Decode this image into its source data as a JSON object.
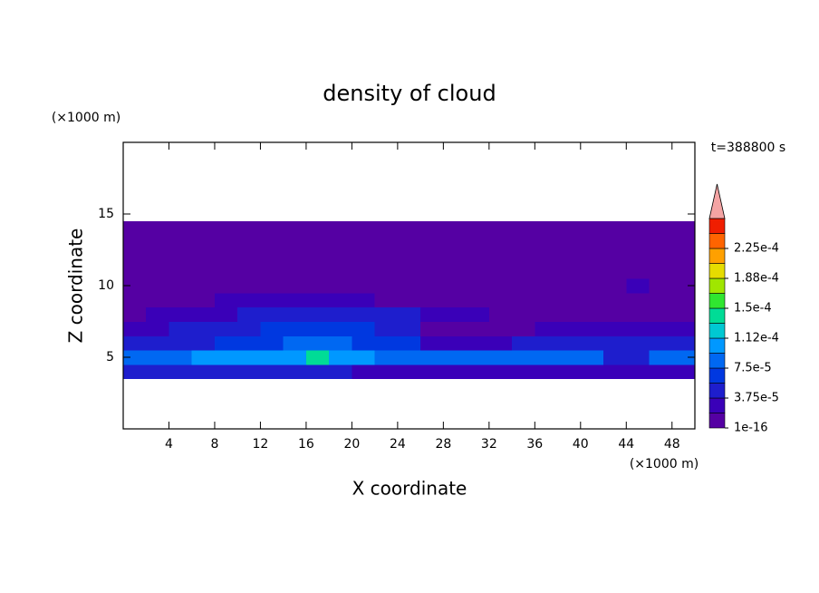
{
  "chart_data": {
    "type": "contour",
    "title": "density of cloud",
    "x_label": "X coordinate",
    "y_label": "Z coordinate",
    "x_unit": "(×1000 m)",
    "y_unit": "(×1000 m)",
    "annotation": "t=388800 s",
    "xlim": [
      0,
      50
    ],
    "ylim": [
      0,
      20
    ],
    "xticks": [
      4,
      8,
      12,
      16,
      20,
      24,
      28,
      32,
      36,
      40,
      44,
      48
    ],
    "yticks": [
      5,
      10,
      15
    ],
    "x": [
      1,
      3,
      5,
      7,
      9,
      11,
      13,
      15,
      17,
      19,
      21,
      23,
      25,
      27,
      29,
      31,
      33,
      35,
      37,
      39,
      41,
      43,
      45,
      47,
      49
    ],
    "z": [
      4,
      5,
      6,
      7,
      8,
      9,
      10,
      11,
      12,
      13,
      14
    ],
    "values": [
      [
        4e-05,
        4e-05,
        4e-05,
        4e-05,
        4e-05,
        4e-05,
        4e-05,
        4e-05,
        4e-05,
        4e-05,
        3e-05,
        3e-05,
        3e-05,
        3e-05,
        3e-05,
        3e-05,
        3e-05,
        3e-05,
        3e-05,
        3e-05,
        3e-05,
        3e-05,
        3e-05,
        3e-05,
        3e-05
      ],
      [
        8e-05,
        8e-05,
        8e-05,
        0.00011,
        0.00011,
        0.00011,
        0.0001,
        0.0001,
        0.00014,
        0.0001,
        0.0001,
        8e-05,
        8e-05,
        9e-05,
        9e-05,
        9e-05,
        9e-05,
        8e-05,
        8e-05,
        8e-05,
        8e-05,
        4e-05,
        4e-05,
        8e-05,
        8e-05
      ],
      [
        4e-05,
        4e-05,
        4e-05,
        4e-05,
        7e-05,
        7e-05,
        7e-05,
        9e-05,
        9e-05,
        9e-05,
        6e-05,
        6e-05,
        6e-05,
        3e-05,
        3e-05,
        3e-05,
        3e-05,
        5e-05,
        5e-05,
        5e-05,
        4e-05,
        4e-05,
        4e-05,
        4e-05,
        4e-05
      ],
      [
        2e-05,
        2e-05,
        4e-05,
        4e-05,
        4e-05,
        4e-05,
        6e-05,
        6e-05,
        6e-05,
        6e-05,
        6e-05,
        4e-05,
        4e-05,
        5e-06,
        5e-06,
        5e-06,
        5e-06,
        5e-06,
        2e-05,
        2e-05,
        2e-05,
        2e-05,
        2e-05,
        2e-05,
        2e-05
      ],
      [
        5e-06,
        2e-05,
        2e-05,
        2e-05,
        2e-05,
        4e-05,
        4e-05,
        4e-05,
        4e-05,
        4e-05,
        4e-05,
        4e-05,
        4e-05,
        2e-05,
        2e-05,
        2e-05,
        5e-06,
        5e-06,
        5e-06,
        5e-06,
        5e-06,
        5e-06,
        5e-06,
        5e-06,
        5e-06
      ],
      [
        5e-06,
        5e-06,
        5e-06,
        5e-06,
        2e-05,
        2e-05,
        2e-05,
        2e-05,
        2e-05,
        2e-05,
        2e-05,
        5e-06,
        5e-06,
        5e-06,
        5e-06,
        5e-06,
        5e-06,
        5e-06,
        5e-06,
        5e-06,
        5e-06,
        5e-06,
        5e-06,
        5e-06,
        5e-06
      ],
      [
        5e-06,
        5e-06,
        5e-06,
        5e-06,
        5e-06,
        5e-06,
        5e-06,
        5e-06,
        5e-06,
        5e-06,
        5e-06,
        5e-06,
        5e-06,
        5e-06,
        5e-06,
        5e-06,
        5e-06,
        5e-06,
        5e-06,
        5e-06,
        5e-06,
        5e-06,
        2e-05,
        5e-06,
        5e-06
      ],
      [
        5e-06,
        5e-06,
        5e-06,
        5e-06,
        5e-06,
        5e-06,
        5e-06,
        5e-06,
        5e-06,
        5e-06,
        5e-06,
        5e-06,
        5e-06,
        5e-06,
        5e-06,
        5e-06,
        5e-06,
        5e-06,
        5e-06,
        5e-06,
        5e-06,
        5e-06,
        5e-06,
        5e-06,
        5e-06
      ],
      [
        5e-06,
        5e-06,
        5e-06,
        5e-06,
        5e-06,
        5e-06,
        5e-06,
        5e-06,
        5e-06,
        5e-06,
        5e-06,
        5e-06,
        5e-06,
        5e-06,
        5e-06,
        5e-06,
        5e-06,
        5e-06,
        5e-06,
        5e-06,
        5e-06,
        5e-06,
        5e-06,
        5e-06,
        5e-06
      ],
      [
        5e-06,
        5e-06,
        5e-06,
        5e-06,
        5e-06,
        5e-06,
        5e-06,
        5e-06,
        5e-06,
        5e-06,
        5e-06,
        5e-06,
        5e-06,
        5e-06,
        5e-06,
        5e-06,
        5e-06,
        5e-06,
        5e-06,
        5e-06,
        5e-06,
        5e-06,
        5e-06,
        5e-06,
        5e-06
      ],
      [
        5e-06,
        5e-06,
        5e-06,
        5e-06,
        5e-06,
        5e-06,
        5e-06,
        5e-06,
        5e-06,
        5e-06,
        5e-06,
        5e-06,
        5e-06,
        5e-06,
        5e-06,
        5e-06,
        5e-06,
        5e-06,
        5e-06,
        5e-06,
        5e-06,
        5e-06,
        5e-06,
        5e-06,
        5e-06
      ]
    ],
    "levels": [
      1e-16,
      1.875e-05,
      3.75e-05,
      5.625e-05,
      7.5e-05,
      9.375e-05,
      0.0001125,
      0.00013125,
      0.00015,
      0.00016875,
      0.0001875,
      0.00020625,
      0.000225,
      0.00024375,
      0.0002625
    ],
    "colors": [
      "#5500a3",
      "#3a00b8",
      "#1e1ecd",
      "#0038e0",
      "#0068f2",
      "#0098ff",
      "#00c8d2",
      "#00dc96",
      "#30e630",
      "#a0e600",
      "#e6dc00",
      "#ffa000",
      "#ff6400",
      "#f01e00"
    ],
    "extend_color": "#f4a4a4",
    "colorbar_ticks": [
      {
        "value": 1e-16,
        "label": "1e-16"
      },
      {
        "value": 3.75e-05,
        "label": "3.75e-5"
      },
      {
        "value": 7.5e-05,
        "label": "7.5e-5"
      },
      {
        "value": 0.0001125,
        "label": "1.12e-4"
      },
      {
        "value": 0.00015,
        "label": "1.5e-4"
      },
      {
        "value": 0.0001875,
        "label": "1.88e-4"
      },
      {
        "value": 0.000225,
        "label": "2.25e-4"
      }
    ]
  }
}
